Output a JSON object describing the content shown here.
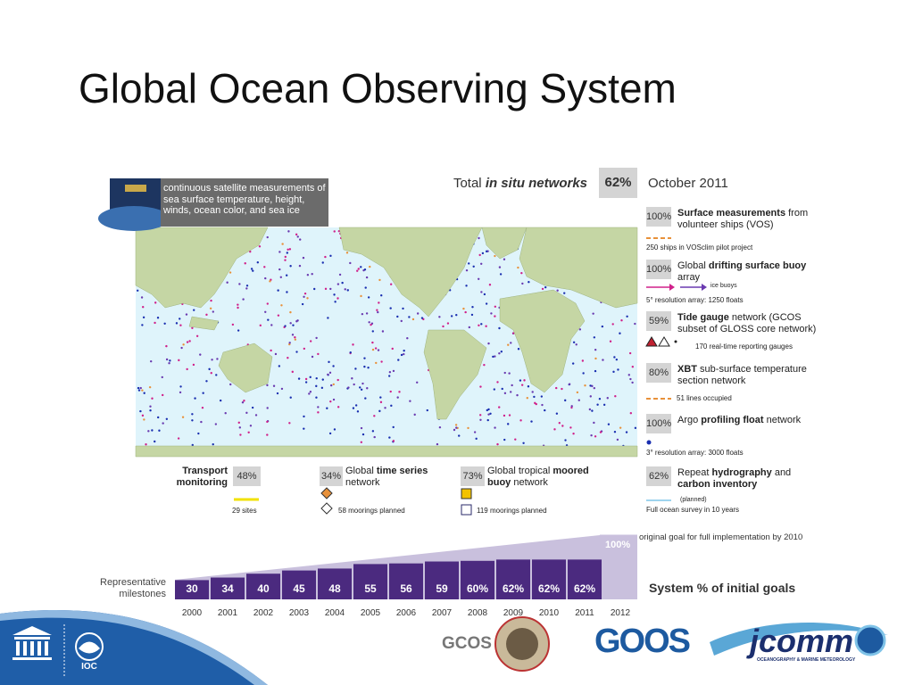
{
  "title": "Global Ocean Observing System",
  "satellite": "continuous satellite measurements of sea surface temperature, height, winds, ocean color, and sea ice",
  "header": {
    "prefix": "Total",
    "emphasis": "in situ networks",
    "percent": "62%",
    "date": "October 2011"
  },
  "networks": [
    {
      "percent": "100%",
      "label": [
        "Surface measurements",
        " from volunteer ships (VOS)"
      ],
      "note": "250 ships in VOSclim pilot project"
    },
    {
      "percent": "100%",
      "label": [
        "Global ",
        "drifting surface buoy",
        " array"
      ],
      "legend": "ice buoys",
      "note": "5° resolution array: 1250 floats"
    },
    {
      "percent": "59%",
      "label": [
        "Tide gauge",
        " network (GCOS subset of GLOSS core network)"
      ],
      "note": "170 real-time reporting gauges"
    },
    {
      "percent": "80%",
      "label": [
        "XBT",
        " sub-surface temperature section network"
      ],
      "note": "51 lines occupied"
    },
    {
      "percent": "100%",
      "label": [
        "Argo ",
        "profiling float",
        " network"
      ],
      "note": "3° resolution array: 3000 floats"
    },
    {
      "percent": "62%",
      "label": [
        "Repeat ",
        "hydrography",
        " and ",
        "carbon inventory"
      ],
      "legend": "(planned)",
      "note": "Full ocean survey in 10 years"
    }
  ],
  "bottom_networks": [
    {
      "percent": "48%",
      "label": [
        "Transport monitoring"
      ],
      "note": "29 sites"
    },
    {
      "percent": "34%",
      "label": [
        "Global ",
        "time series",
        " network"
      ],
      "note": "58 moorings planned"
    },
    {
      "percent": "73%",
      "label": [
        "Global tropical ",
        "moored buoy",
        " network"
      ],
      "note": "119 moorings planned"
    }
  ],
  "chart_data": {
    "type": "bar",
    "title": "System % of initial goals",
    "label": "Representative milestones",
    "annotation": "original goal for full implementation by 2010",
    "categories": [
      "2000",
      "2001",
      "2002",
      "2003",
      "2004",
      "2005",
      "2006",
      "2007",
      "2008",
      "2009",
      "2010",
      "2011",
      "2012"
    ],
    "values": [
      30,
      34,
      40,
      45,
      48,
      55,
      56,
      59,
      60,
      62,
      62,
      62,
      null
    ],
    "value_labels": [
      "30",
      "34",
      "40",
      "45",
      "48",
      "55",
      "56",
      "59",
      "60%",
      "62%",
      "62%",
      "62%",
      null
    ],
    "color": "#4b2a7f",
    "background_color": "#c9c0dd",
    "ylim": [
      0,
      100
    ],
    "yticks": [
      {
        "value": 100,
        "label": "100%"
      }
    ]
  },
  "logos": {
    "ioc": "IOC",
    "gcos": "GCOS",
    "goos": "GOOS",
    "jcomm": "jcomm",
    "jcomm_subtitle": "OCEANOGRAPHY & MARINE METEOROLOGY"
  }
}
